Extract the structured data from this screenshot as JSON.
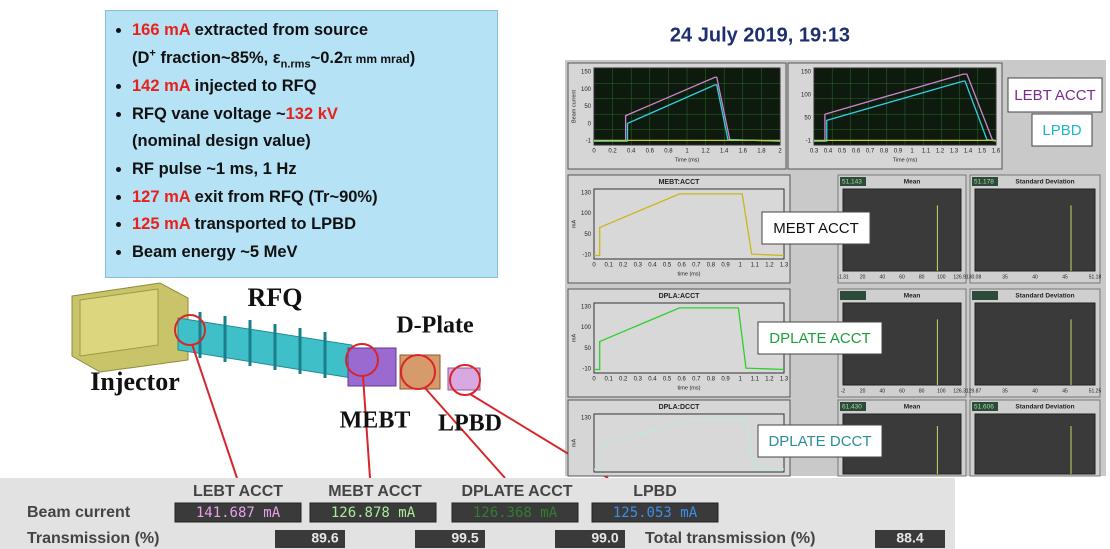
{
  "title": "24 July 2019, 19:13",
  "info_box": {
    "lines": [
      {
        "bullet": true,
        "parts": [
          {
            "text": "166 mA",
            "style": "highlight"
          },
          {
            "text": " extracted from source"
          }
        ]
      },
      {
        "bullet": false,
        "parts": [
          {
            "text": "(D"
          },
          {
            "text": "+",
            "style": "sup"
          },
          {
            "text": " fraction~85%, ε"
          },
          {
            "text": "n.rms",
            "style": "sub"
          },
          {
            "text": "~0.2"
          },
          {
            "text": "π mm mrad",
            "style": "small"
          },
          {
            "text": ")"
          }
        ]
      },
      {
        "bullet": true,
        "parts": [
          {
            "text": "142 mA",
            "style": "highlight"
          },
          {
            "text": " injected to RFQ"
          }
        ]
      },
      {
        "bullet": true,
        "parts": [
          {
            "text": "RFQ vane voltage ~"
          },
          {
            "text": "132 kV",
            "style": "highlight"
          }
        ]
      },
      {
        "bullet": false,
        "parts": [
          {
            "text": "(nominal design value)"
          }
        ]
      },
      {
        "bullet": true,
        "parts": [
          {
            "text": " RF pulse ~1 ms, 1 Hz"
          }
        ]
      },
      {
        "bullet": true,
        "parts": [
          {
            "text": "127 mA",
            "style": "highlight"
          },
          {
            "text": " exit from RFQ (Tr~90%)"
          }
        ]
      },
      {
        "bullet": true,
        "parts": [
          {
            "text": "125 mA",
            "style": "highlight"
          },
          {
            "text": " transported to LPBD"
          }
        ]
      },
      {
        "bullet": true,
        "parts": [
          {
            "text": "Beam energy ~5 MeV"
          }
        ]
      }
    ]
  },
  "diagram": {
    "labels": [
      "RFQ",
      "D-Plate",
      "Injector",
      "MEBT",
      "LPBD"
    ]
  },
  "scopes": [
    {
      "ylabel": "Beam current",
      "xlabel": "Time (ms)",
      "yticks": [
        "150",
        "100",
        "50",
        "0",
        "-1"
      ],
      "xticks": [
        "0",
        "0.2",
        "0.4",
        "0.6",
        "0.8",
        "1",
        "1.2",
        "1.4",
        "1.6",
        "1.8",
        "2"
      ]
    },
    {
      "xlabel": "Time (ms)",
      "yticks": [
        "150",
        "100",
        "50",
        "-1"
      ],
      "xticks": [
        "0.3",
        "0.4",
        "0.5",
        "0.6",
        "0.7",
        "0.8",
        "0.9",
        "1",
        "1.1",
        "1.2",
        "1.3",
        "1.4",
        "1.5",
        "1.6"
      ]
    },
    {
      "title": "MEBT:ACCT",
      "ylabel": "mA",
      "xlabel": "time (ms)",
      "yticks": [
        "130",
        "100",
        "50",
        "-10"
      ],
      "xticks": [
        "0",
        "0.1",
        "0.2",
        "0.3",
        "0.4",
        "0.5",
        "0.6",
        "0.7",
        "0.8",
        "0.9",
        "1",
        "1.1",
        "1.2",
        "1.3"
      ]
    },
    {
      "title": "DPLA:ACCT",
      "ylabel": "mA",
      "xlabel": "time (ms)",
      "yticks": [
        "130",
        "100",
        "50",
        "-10"
      ],
      "xticks": [
        "0",
        "0.1",
        "0.2",
        "0.3",
        "0.4",
        "0.5",
        "0.6",
        "0.7",
        "0.8",
        "0.9",
        "1",
        "1.1",
        "1.2",
        "1.3"
      ]
    },
    {
      "title": "DPLA:DCCT",
      "ylabel": "mA",
      "yticks": [
        "130"
      ],
      "xticks": []
    }
  ],
  "histograms": [
    {
      "title": "Mean",
      "value": "51.143",
      "xticks": [
        "-1.31",
        "20",
        "40",
        "60",
        "80",
        "100",
        "126.91"
      ]
    },
    {
      "title": "Standard Deviation",
      "value": "51.178",
      "xticks": [
        "30.08",
        "35",
        "40",
        "45",
        "51.18"
      ]
    },
    {
      "title": "Mean",
      "xticks": [
        "-2",
        "20",
        "40",
        "60",
        "80",
        "100",
        "126.31"
      ]
    },
    {
      "title": "Standard Deviation",
      "xticks": [
        "29.87",
        "35",
        "40",
        "45",
        "51.25"
      ]
    },
    {
      "title": "Mean",
      "value": "61.430",
      "xticks": []
    },
    {
      "title": "Standard Deviation",
      "value": "51.606",
      "xticks": []
    }
  ],
  "callouts": [
    {
      "text": "LEBT ACCT",
      "color": "#7b2a8e"
    },
    {
      "text": "LPBD",
      "color": "#1fb4cf"
    },
    {
      "text": "MEBT ACCT",
      "color": "#111111"
    },
    {
      "text": "DPLATE ACCT",
      "color": "#1e9e3a"
    },
    {
      "text": "DPLATE DCCT",
      "color": "#2c8c9a"
    }
  ],
  "beam_status": {
    "columns": [
      "LEBT ACCT",
      "MEBT ACCT",
      "DPLATE ACCT",
      "LPBD"
    ],
    "beam_current_label": "Beam current",
    "beam_current": [
      {
        "text": "141.687 mA",
        "color": "#e8a0e8"
      },
      {
        "text": "126.878 mA",
        "color": "#a8ec98"
      },
      {
        "text": "126.368 mA",
        "color": "#2f7f2f"
      },
      {
        "text": "125.053 mA",
        "color": "#3d8fe8"
      }
    ],
    "transmission_label": "Transmission (%)",
    "transmission": [
      "89.6",
      "99.5",
      "99.0"
    ],
    "total_label": "Total transmission (%)",
    "total": "88.4"
  }
}
